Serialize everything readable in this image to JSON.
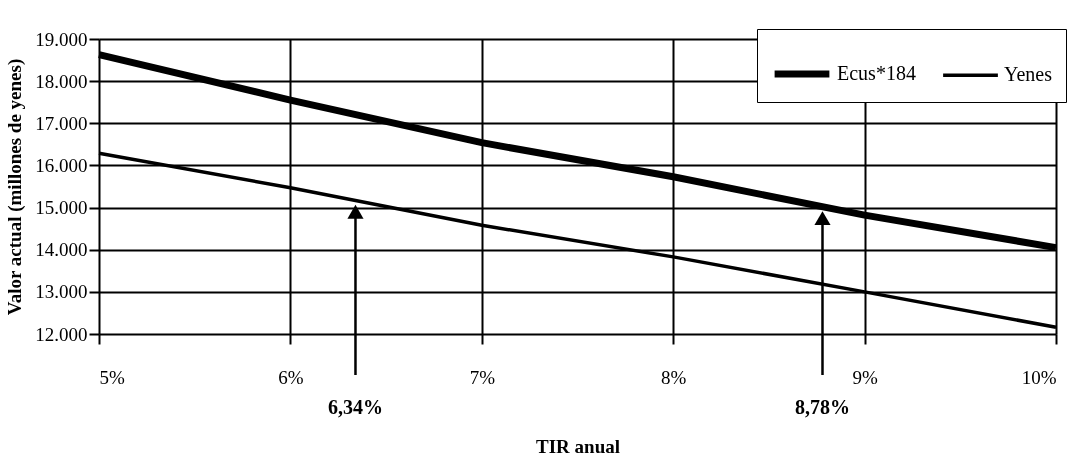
{
  "chart_data": {
    "type": "line",
    "xlabel": "TIR anual",
    "ylabel": "Valor actual (millones de yenes)",
    "x": [
      5,
      6,
      7,
      8,
      9,
      10
    ],
    "series": [
      {
        "name": "Ecus*184",
        "color": "#000000",
        "values": [
          18630,
          17550,
          16540,
          15730,
          14820,
          14050
        ]
      },
      {
        "name": "Yenes",
        "color": "#000000",
        "values": [
          16290,
          15470,
          14580,
          13830,
          13000,
          12160
        ]
      }
    ],
    "xlim": [
      5,
      10
    ],
    "xticks": [
      {
        "value": 5,
        "label": "5%"
      },
      {
        "value": 6,
        "label": "6%"
      },
      {
        "value": 7,
        "label": "7%"
      },
      {
        "value": 8,
        "label": "8%"
      },
      {
        "value": 9,
        "label": "9%"
      },
      {
        "value": 10,
        "label": "10%"
      }
    ],
    "ylim": [
      12000,
      19000
    ],
    "yticks": [
      {
        "value": 12000,
        "label": "12.000"
      },
      {
        "value": 13000,
        "label": "13.000"
      },
      {
        "value": 14000,
        "label": "14.000"
      },
      {
        "value": 15000,
        "label": "15.000"
      },
      {
        "value": 16000,
        "label": "16.000"
      },
      {
        "value": 17000,
        "label": "17.000"
      },
      {
        "value": 18000,
        "label": "18.000"
      },
      {
        "value": 19000,
        "label": "19.000"
      }
    ],
    "annotations": [
      {
        "text": "6,34%",
        "x": 6.34,
        "y": 14900
      },
      {
        "text": "8,78%",
        "x": 8.78,
        "y": 14750
      }
    ],
    "grid": true,
    "legend": "top right"
  }
}
